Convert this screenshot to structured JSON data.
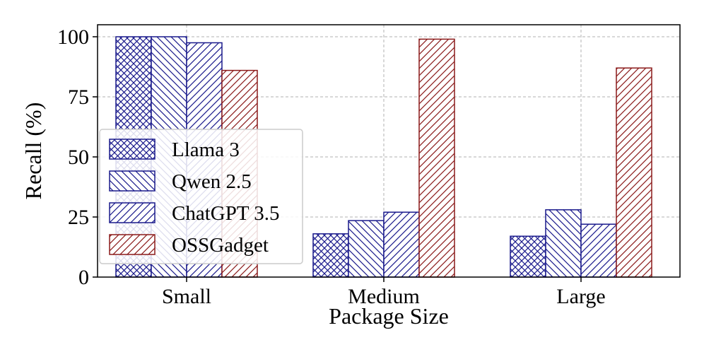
{
  "chart_data": {
    "type": "bar",
    "xlabel": "Package Size",
    "ylabel": "Recall (%)",
    "ylim": [
      0,
      105
    ],
    "yticks": [
      0,
      25,
      50,
      75,
      100
    ],
    "grid": true,
    "legend_position": "center-left",
    "categories": [
      "Small",
      "Medium",
      "Large"
    ],
    "series": [
      {
        "name": "Llama 3",
        "values": [
          100,
          18,
          17
        ],
        "color": "#1a1a8c",
        "hatch": "crosshatch"
      },
      {
        "name": "Qwen 2.5",
        "values": [
          100,
          23.5,
          28
        ],
        "color": "#1a1a8c",
        "hatch": "backslash"
      },
      {
        "name": "ChatGPT 3.5",
        "values": [
          97.5,
          27,
          22
        ],
        "color": "#1a1a8c",
        "hatch": "slash"
      },
      {
        "name": "OSSGadget",
        "values": [
          86,
          99,
          87
        ],
        "color": "#8b1a1a",
        "hatch": "slash"
      }
    ]
  }
}
